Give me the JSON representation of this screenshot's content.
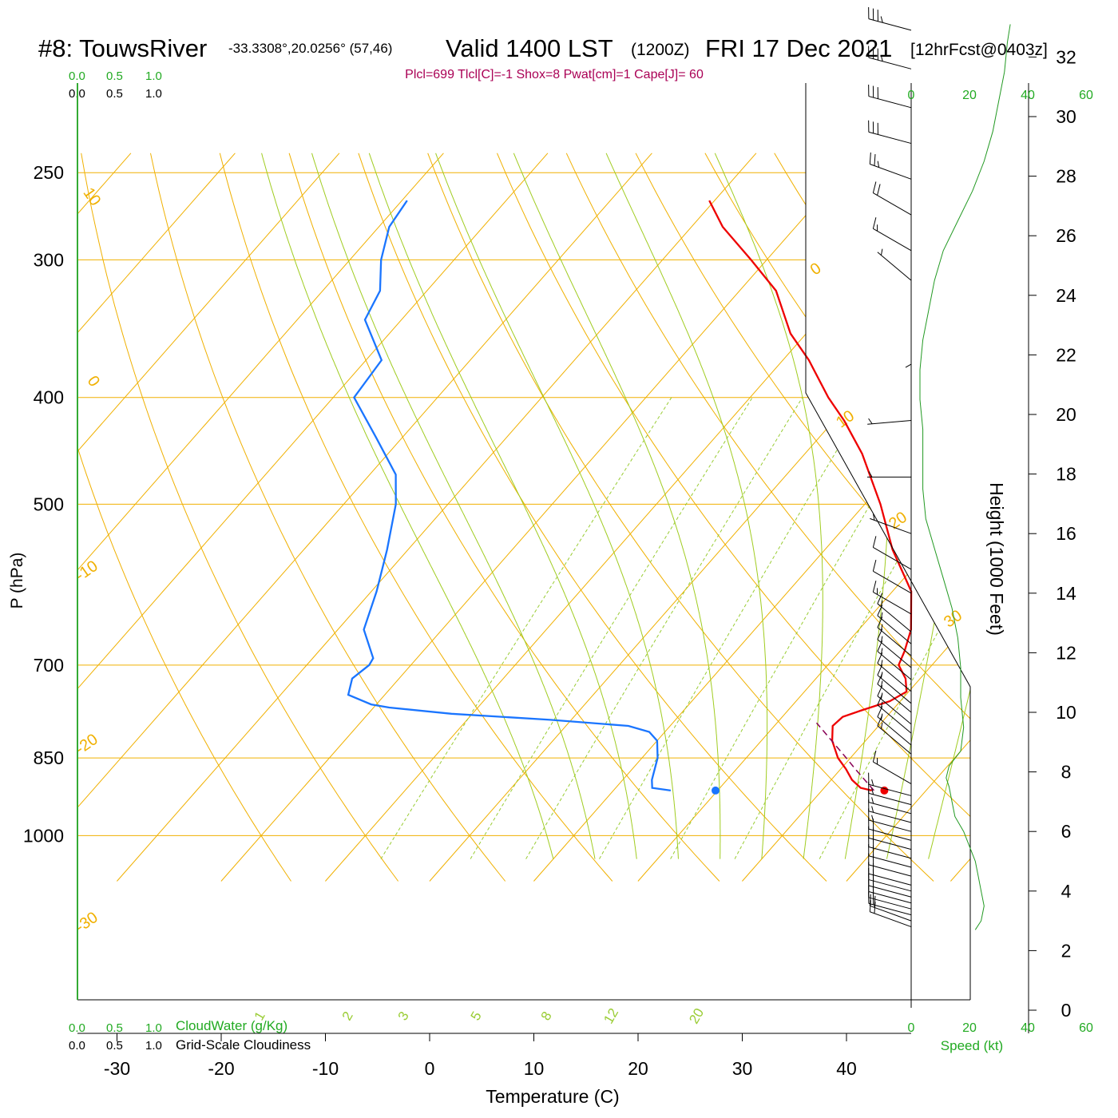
{
  "header": {
    "station": "#8: TouwsRiver",
    "coords": "-33.3308°,20.0256° (57,46)",
    "valid": "Valid 1400 LST",
    "zulu": "(1200Z)",
    "date": "FRI 17 Dec 2021",
    "forecast": "[12hrFcst@0403z]",
    "indices": "Plcl=699 Tlcl[C]=-1 Shox=8 Pwat[cm]=1 Cape[J]= 60"
  },
  "scales": {
    "top_green": [
      "0.0",
      "0.5",
      "1.0"
    ],
    "top_black": [
      "0.0",
      "0.5",
      "1.0"
    ],
    "bottom_green": [
      "0.0",
      "0.5",
      "1.0"
    ],
    "bottom_black": [
      "0.0",
      "0.5",
      "1.0"
    ],
    "cloudwater_label": "CloudWater (g/Kg)",
    "cloudiness_label": "Grid-Scale Cloudiness",
    "speed_label": "Speed (kt)"
  },
  "colors": {
    "isotherm": "#f0b000",
    "adiabat": "#a0cc20",
    "mixing_ratio": "#99cc33",
    "temperature": "#ee0000",
    "dewpoint": "#1a75ff",
    "parcel": "#880055",
    "speed": "#229922",
    "indices_text": "#aa0055",
    "green_text": "#22aa22"
  },
  "chart_data": {
    "type": "skew-t",
    "xlabel": "Temperature (C)",
    "ylabel": "P (hPa)",
    "right_axis_label": "Height (1000 Feet)",
    "pressure_ticks": [
      250,
      300,
      400,
      500,
      700,
      850,
      1000
    ],
    "temperature_ticks": [
      -30,
      -20,
      -10,
      0,
      10,
      20,
      30,
      40
    ],
    "xlim": [
      -33.5,
      47.5
    ],
    "plim": [
      250,
      1080
    ],
    "height_ticks": [
      0,
      2,
      4,
      6,
      8,
      10,
      12,
      14,
      16,
      18,
      20,
      22,
      24,
      26,
      28,
      30,
      32
    ],
    "speed_ticks": [
      0,
      20,
      40,
      60
    ],
    "isotherm_labels": [
      {
        "t": 0,
        "text": "0"
      },
      {
        "t": 10,
        "text": "10"
      },
      {
        "t": 20,
        "text": "20"
      },
      {
        "t": 30,
        "text": "30"
      },
      {
        "t": -10,
        "text": "-10"
      },
      {
        "t": -20,
        "text": "-20"
      },
      {
        "t": -30,
        "text": "-30"
      },
      {
        "t": 10,
        "text": "10",
        "left": true
      },
      {
        "t": 0,
        "text": "0",
        "left": true
      }
    ],
    "mixing_ratio_labels": [
      "1",
      "2",
      "3",
      "5",
      "8",
      "12",
      "20"
    ],
    "temperature_profile": [
      {
        "p": 910,
        "t": 24.8
      },
      {
        "p": 905,
        "t": 23.5
      },
      {
        "p": 890,
        "t": 22.0
      },
      {
        "p": 870,
        "t": 20.5
      },
      {
        "p": 850,
        "t": 18.8
      },
      {
        "p": 820,
        "t": 16.8
      },
      {
        "p": 795,
        "t": 15.6
      },
      {
        "p": 780,
        "t": 15.8
      },
      {
        "p": 770,
        "t": 17.0
      },
      {
        "p": 755,
        "t": 19.0
      },
      {
        "p": 740,
        "t": 19.8
      },
      {
        "p": 720,
        "t": 18.6
      },
      {
        "p": 700,
        "t": 16.8
      },
      {
        "p": 680,
        "t": 16.2
      },
      {
        "p": 650,
        "t": 15.0
      },
      {
        "p": 600,
        "t": 11.8
      },
      {
        "p": 550,
        "t": 6.5
      },
      {
        "p": 500,
        "t": 1.5
      },
      {
        "p": 450,
        "t": -4.5
      },
      {
        "p": 420,
        "t": -9.0
      },
      {
        "p": 400,
        "t": -12.5
      },
      {
        "p": 370,
        "t": -17.5
      },
      {
        "p": 350,
        "t": -21.5
      },
      {
        "p": 320,
        "t": -26.5
      },
      {
        "p": 300,
        "t": -31.5
      },
      {
        "p": 280,
        "t": -37.0
      },
      {
        "p": 265,
        "t": -40.5
      }
    ],
    "dewpoint_profile": [
      {
        "p": 910,
        "t": 5.5
      },
      {
        "p": 905,
        "t": 3.5
      },
      {
        "p": 890,
        "t": 2.8
      },
      {
        "p": 850,
        "t": 1.5
      },
      {
        "p": 820,
        "t": 0.0
      },
      {
        "p": 805,
        "t": -1.5
      },
      {
        "p": 795,
        "t": -4.0
      },
      {
        "p": 785,
        "t": -12.0
      },
      {
        "p": 775,
        "t": -22.0
      },
      {
        "p": 765,
        "t": -28.5
      },
      {
        "p": 760,
        "t": -30.5
      },
      {
        "p": 745,
        "t": -33.5
      },
      {
        "p": 720,
        "t": -34.5
      },
      {
        "p": 700,
        "t": -34.0
      },
      {
        "p": 690,
        "t": -34.2
      },
      {
        "p": 650,
        "t": -37.5
      },
      {
        "p": 600,
        "t": -39.5
      },
      {
        "p": 550,
        "t": -42.0
      },
      {
        "p": 500,
        "t": -45.0
      },
      {
        "p": 470,
        "t": -47.5
      },
      {
        "p": 435,
        "t": -52.5
      },
      {
        "p": 400,
        "t": -58.0
      },
      {
        "p": 370,
        "t": -58.5
      },
      {
        "p": 340,
        "t": -63.5
      },
      {
        "p": 320,
        "t": -64.5
      },
      {
        "p": 300,
        "t": -67.0
      },
      {
        "p": 280,
        "t": -69.0
      },
      {
        "p": 265,
        "t": -69.5
      }
    ],
    "parcel_profile": [
      {
        "p": 910,
        "t": 25.0
      },
      {
        "p": 870,
        "t": 21.4
      },
      {
        "p": 850,
        "t": 19.6
      },
      {
        "p": 800,
        "t": 14.8
      },
      {
        "p": 790,
        "t": 13.8
      }
    ],
    "surface_temperature": {
      "p": 910,
      "t": 26.0
    },
    "surface_dewpoint": {
      "p": 910,
      "t": 9.8
    },
    "wind_speed_profile": [
      {
        "h": 2.7,
        "s": 22
      },
      {
        "h": 3.0,
        "s": 24
      },
      {
        "h": 3.5,
        "s": 25
      },
      {
        "h": 4.0,
        "s": 24
      },
      {
        "h": 4.5,
        "s": 23
      },
      {
        "h": 5.0,
        "s": 22
      },
      {
        "h": 5.5,
        "s": 20
      },
      {
        "h": 6.0,
        "s": 18
      },
      {
        "h": 6.5,
        "s": 15
      },
      {
        "h": 7.0,
        "s": 14
      },
      {
        "h": 7.5,
        "s": 13
      },
      {
        "h": 7.8,
        "s": 12
      },
      {
        "h": 8.2,
        "s": 13
      },
      {
        "h": 8.7,
        "s": 17
      },
      {
        "h": 9.5,
        "s": 18
      },
      {
        "h": 10.5,
        "s": 17
      },
      {
        "h": 11.5,
        "s": 17
      },
      {
        "h": 12.5,
        "s": 16
      },
      {
        "h": 13.5,
        "s": 14
      },
      {
        "h": 14.5,
        "s": 11
      },
      {
        "h": 15.5,
        "s": 8
      },
      {
        "h": 16.5,
        "s": 5
      },
      {
        "h": 17.5,
        "s": 4
      },
      {
        "h": 18.5,
        "s": 4
      },
      {
        "h": 19.5,
        "s": 4
      },
      {
        "h": 20.5,
        "s": 3
      },
      {
        "h": 21.5,
        "s": 3
      },
      {
        "h": 22.5,
        "s": 4
      },
      {
        "h": 23.5,
        "s": 6
      },
      {
        "h": 24.5,
        "s": 8
      },
      {
        "h": 25.5,
        "s": 11
      },
      {
        "h": 26.5,
        "s": 16
      },
      {
        "h": 27.5,
        "s": 21
      },
      {
        "h": 28.5,
        "s": 25
      },
      {
        "h": 29.5,
        "s": 28
      },
      {
        "h": 30.5,
        "s": 30
      },
      {
        "h": 31.5,
        "s": 32
      },
      {
        "h": 32.5,
        "s": 33
      },
      {
        "h": 33.1,
        "s": 34
      }
    ],
    "wind_barbs": [
      {
        "h": 2.8,
        "dir": 290,
        "spd": 20
      },
      {
        "h": 3.0,
        "dir": 290,
        "spd": 20
      },
      {
        "h": 3.2,
        "dir": 285,
        "spd": 20
      },
      {
        "h": 3.4,
        "dir": 285,
        "spd": 20
      },
      {
        "h": 3.6,
        "dir": 285,
        "spd": 20
      },
      {
        "h": 3.8,
        "dir": 285,
        "spd": 20
      },
      {
        "h": 4.0,
        "dir": 285,
        "spd": 20
      },
      {
        "h": 4.2,
        "dir": 285,
        "spd": 20
      },
      {
        "h": 4.5,
        "dir": 285,
        "spd": 20
      },
      {
        "h": 4.8,
        "dir": 285,
        "spd": 20
      },
      {
        "h": 5.1,
        "dir": 285,
        "spd": 20
      },
      {
        "h": 5.4,
        "dir": 285,
        "spd": 20
      },
      {
        "h": 5.7,
        "dir": 285,
        "spd": 20
      },
      {
        "h": 6.0,
        "dir": 285,
        "spd": 15
      },
      {
        "h": 6.3,
        "dir": 285,
        "spd": 15
      },
      {
        "h": 6.6,
        "dir": 285,
        "spd": 15
      },
      {
        "h": 6.9,
        "dir": 285,
        "spd": 15
      },
      {
        "h": 7.2,
        "dir": 285,
        "spd": 15
      },
      {
        "h": 7.6,
        "dir": 300,
        "spd": 15
      },
      {
        "h": 8.6,
        "dir": 310,
        "spd": 15
      },
      {
        "h": 8.9,
        "dir": 310,
        "spd": 15
      },
      {
        "h": 9.3,
        "dir": 310,
        "spd": 15
      },
      {
        "h": 9.6,
        "dir": 310,
        "spd": 15
      },
      {
        "h": 10.0,
        "dir": 310,
        "spd": 15
      },
      {
        "h": 10.3,
        "dir": 310,
        "spd": 15
      },
      {
        "h": 10.7,
        "dir": 310,
        "spd": 15
      },
      {
        "h": 11.1,
        "dir": 310,
        "spd": 15
      },
      {
        "h": 11.5,
        "dir": 310,
        "spd": 15
      },
      {
        "h": 11.9,
        "dir": 310,
        "spd": 15
      },
      {
        "h": 12.3,
        "dir": 310,
        "spd": 15
      },
      {
        "h": 12.7,
        "dir": 310,
        "spd": 15
      },
      {
        "h": 13.3,
        "dir": 300,
        "spd": 15
      },
      {
        "h": 14.0,
        "dir": 300,
        "spd": 10
      },
      {
        "h": 14.8,
        "dir": 300,
        "spd": 10
      },
      {
        "h": 16.0,
        "dir": 290,
        "spd": 5
      },
      {
        "h": 17.9,
        "dir": 270,
        "spd": 5
      },
      {
        "h": 19.8,
        "dir": 265,
        "spd": 5
      },
      {
        "h": 23.0,
        "dir": 180,
        "spd": 5
      },
      {
        "h": 24.5,
        "dir": 310,
        "spd": 5
      },
      {
        "h": 25.5,
        "dir": 300,
        "spd": 15
      },
      {
        "h": 26.7,
        "dir": 300,
        "spd": 20
      },
      {
        "h": 27.9,
        "dir": 290,
        "spd": 25
      },
      {
        "h": 29.1,
        "dir": 285,
        "spd": 30
      },
      {
        "h": 30.3,
        "dir": 285,
        "spd": 30
      },
      {
        "h": 31.6,
        "dir": 285,
        "spd": 35
      },
      {
        "h": 32.9,
        "dir": 285,
        "spd": 35
      }
    ]
  }
}
